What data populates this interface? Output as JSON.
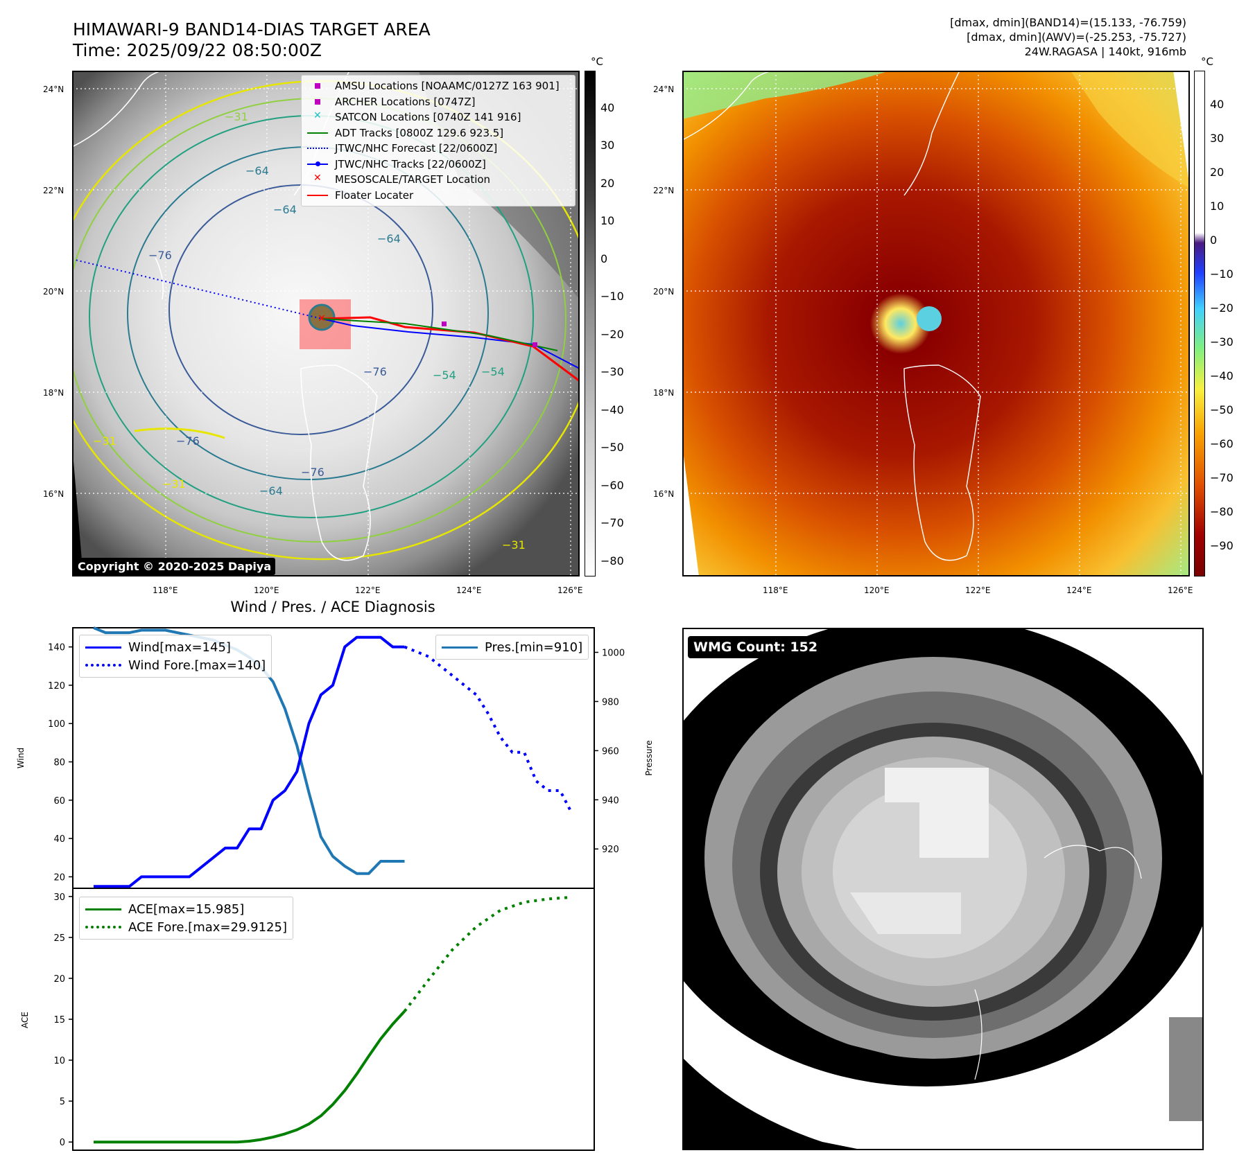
{
  "header": {
    "title_line1": "HIMAWARI-9 BAND14-DIAS TARGET AREA",
    "title_line2": "Time: 2025/09/22 08:50:00Z",
    "info_line1": "[dmax, dmin](BAND14)=(15.133, -76.759)",
    "info_line2": "[dmax, dmin](AWV)=(-25.253, -75.727)",
    "info_line3": "24W.RAGASA | 140kt, 916mb"
  },
  "map_panel": {
    "lat_labels": [
      "24°N",
      "22°N",
      "20°N",
      "18°N",
      "16°N"
    ],
    "lon_labels": [
      "118°E",
      "120°E",
      "122°E",
      "124°E",
      "126°E"
    ],
    "colorbar_unit": "°C",
    "gray_colorbar_ticks": [
      "40",
      "30",
      "20",
      "10",
      "0",
      "−10",
      "−20",
      "−30",
      "−40",
      "−50",
      "−60",
      "−70",
      "−80"
    ],
    "copyright": "Copyright © 2020-2025 Dapiya",
    "contour_labels": [
      "−64",
      "−64",
      "−64",
      "−76",
      "−76",
      "−76",
      "−31",
      "−31",
      "−31",
      "−54",
      "−54",
      "−31",
      "−64",
      "−76"
    ],
    "legend": [
      {
        "label": "AMSU Locations [NOAAMC/0127Z 163 901]",
        "marker": "square",
        "color": "#c000c0"
      },
      {
        "label": "ARCHER Locations [0747Z]",
        "marker": "square",
        "color": "#c000c0"
      },
      {
        "label": "SATCON Locations [0740Z 141 916]",
        "marker": "x",
        "color": "#20c0c0"
      },
      {
        "label": "ADT Tracks [0800Z 129.6 923.5]",
        "marker": "line",
        "color": "#008000"
      },
      {
        "label": "JTWC/NHC Forecast [22/0600Z]",
        "marker": "dotted",
        "color": "#0000ff"
      },
      {
        "label": "JTWC/NHC Tracks [22/0600Z]",
        "marker": "line-dot",
        "color": "#0000ff"
      },
      {
        "label": "MESOSCALE/TARGET Location",
        "marker": "x",
        "color": "#ff0000"
      },
      {
        "label": "Floater Locater",
        "marker": "line",
        "color": "#ff0000"
      }
    ]
  },
  "color_panel": {
    "colorbar_unit": "°C",
    "colorbar_ticks": [
      "40",
      "30",
      "20",
      "10",
      "0",
      "−10",
      "−20",
      "−30",
      "−40",
      "−50",
      "−60",
      "−70",
      "−80",
      "−90"
    ]
  },
  "diagnosis_title": "Wind / Pres. / ACE Diagnosis",
  "wmg_panel": {
    "label": "WMG Count: 152"
  },
  "chart_data": [
    {
      "type": "line",
      "title": "Wind / Pres. / ACE Diagnosis",
      "ylabel": "Wind",
      "y2label": "Pressure",
      "ylim": [
        14,
        150
      ],
      "y2lim": [
        904,
        1010
      ],
      "yticks": [
        "20",
        "40",
        "60",
        "80",
        "100",
        "120",
        "140"
      ],
      "y2ticks": [
        "920",
        "940",
        "960",
        "980",
        "1000"
      ],
      "series": [
        {
          "name": "Wind[max=145]",
          "color": "#0000ff",
          "style": "solid",
          "axis": "left",
          "x": [
            0,
            1,
            2,
            3,
            4,
            5,
            6,
            7,
            8,
            9,
            10,
            11,
            12,
            13,
            14,
            15,
            16,
            17,
            18,
            19,
            20,
            21,
            22,
            23,
            24,
            25,
            26
          ],
          "values": [
            15,
            15,
            15,
            15,
            20,
            20,
            20,
            20,
            20,
            25,
            30,
            35,
            35,
            45,
            45,
            60,
            65,
            75,
            100,
            115,
            120,
            140,
            145,
            145,
            145,
            140,
            140
          ]
        },
        {
          "name": "Wind Fore.[max=140]",
          "color": "#0000ff",
          "style": "dotted",
          "axis": "left",
          "x": [
            26,
            28,
            30,
            32,
            33,
            34,
            35,
            36,
            37,
            38,
            39,
            40
          ],
          "values": [
            140,
            135,
            125,
            115,
            105,
            93,
            85,
            85,
            70,
            65,
            65,
            53
          ]
        },
        {
          "name": "Pres.[min=910]",
          "color": "#1f77b4",
          "style": "solid",
          "axis": "right",
          "x": [
            0,
            1,
            2,
            3,
            4,
            5,
            6,
            7,
            8,
            9,
            10,
            11,
            12,
            13,
            14,
            15,
            16,
            17,
            18,
            19,
            20,
            21,
            22,
            23,
            24,
            25,
            26
          ],
          "values": [
            1010,
            1008,
            1008,
            1008,
            1009,
            1009,
            1009,
            1008,
            1007,
            1006,
            1005,
            1003,
            1001,
            998,
            994,
            988,
            977,
            962,
            943,
            925,
            917,
            913,
            910,
            910,
            915,
            915,
            915
          ]
        }
      ]
    },
    {
      "type": "line",
      "ylabel": "ACE",
      "ylim": [
        -1,
        31
      ],
      "yticks": [
        "0",
        "5",
        "10",
        "15",
        "20",
        "25",
        "30"
      ],
      "series": [
        {
          "name": "ACE[max=15.985]",
          "color": "#008000",
          "style": "solid",
          "x": [
            0,
            2,
            4,
            6,
            8,
            10,
            12,
            13,
            14,
            15,
            16,
            17,
            18,
            19,
            20,
            21,
            22,
            23,
            24,
            25,
            26
          ],
          "values": [
            0,
            0,
            0,
            0,
            0,
            0,
            0,
            0.1,
            0.3,
            0.6,
            1.0,
            1.5,
            2.2,
            3.2,
            4.6,
            6.3,
            8.3,
            10.5,
            12.6,
            14.4,
            15.985
          ]
        },
        {
          "name": "ACE Fore.[max=29.9125]",
          "color": "#008000",
          "style": "dotted",
          "x": [
            26,
            28,
            30,
            32,
            34,
            36,
            38,
            40
          ],
          "values": [
            15.985,
            19.8,
            23.5,
            26.3,
            28.3,
            29.3,
            29.7,
            29.9125
          ]
        }
      ]
    }
  ]
}
